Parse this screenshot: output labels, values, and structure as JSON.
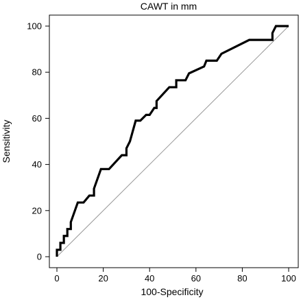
{
  "chart_data": {
    "type": "line",
    "title": "CAWT in mm",
    "xlabel": "100-Specificity",
    "ylabel": "Sensitivity",
    "xlim": [
      0,
      100
    ],
    "ylim": [
      0,
      100
    ],
    "xticks": [
      0,
      20,
      40,
      60,
      80,
      100
    ],
    "yticks": [
      0,
      20,
      40,
      60,
      80,
      100
    ],
    "grid": false,
    "legend": "none",
    "series": [
      {
        "color": "#000000",
        "points": [
          [
            0,
            0
          ],
          [
            0,
            3
          ],
          [
            1.5,
            3
          ],
          [
            1.5,
            6
          ],
          [
            3,
            6
          ],
          [
            3,
            9
          ],
          [
            4.5,
            9
          ],
          [
            4.5,
            12
          ],
          [
            6,
            12
          ],
          [
            6,
            15
          ],
          [
            9,
            23.5
          ],
          [
            11.5,
            23.5
          ],
          [
            14,
            26.5
          ],
          [
            16,
            26.5
          ],
          [
            16,
            29.5
          ],
          [
            19,
            38
          ],
          [
            22.5,
            38
          ],
          [
            28,
            44
          ],
          [
            30,
            44
          ],
          [
            30,
            47
          ],
          [
            31.5,
            50
          ],
          [
            34,
            59
          ],
          [
            36,
            59
          ],
          [
            38.5,
            61.5
          ],
          [
            40,
            61.5
          ],
          [
            42,
            64.5
          ],
          [
            43,
            64.5
          ],
          [
            43,
            67.5
          ],
          [
            48.5,
            73.5
          ],
          [
            51.5,
            73.5
          ],
          [
            51.5,
            76.5
          ],
          [
            55.5,
            76.5
          ],
          [
            57,
            79.5
          ],
          [
            63.5,
            82.5
          ],
          [
            64.5,
            85
          ],
          [
            69,
            85
          ],
          [
            71,
            88
          ],
          [
            83,
            94
          ],
          [
            93,
            94
          ],
          [
            93,
            97
          ],
          [
            94.5,
            100
          ],
          [
            100,
            100
          ]
        ]
      },
      {
        "color": "#999999",
        "points": [
          [
            0,
            0
          ],
          [
            100,
            100
          ]
        ]
      }
    ]
  }
}
